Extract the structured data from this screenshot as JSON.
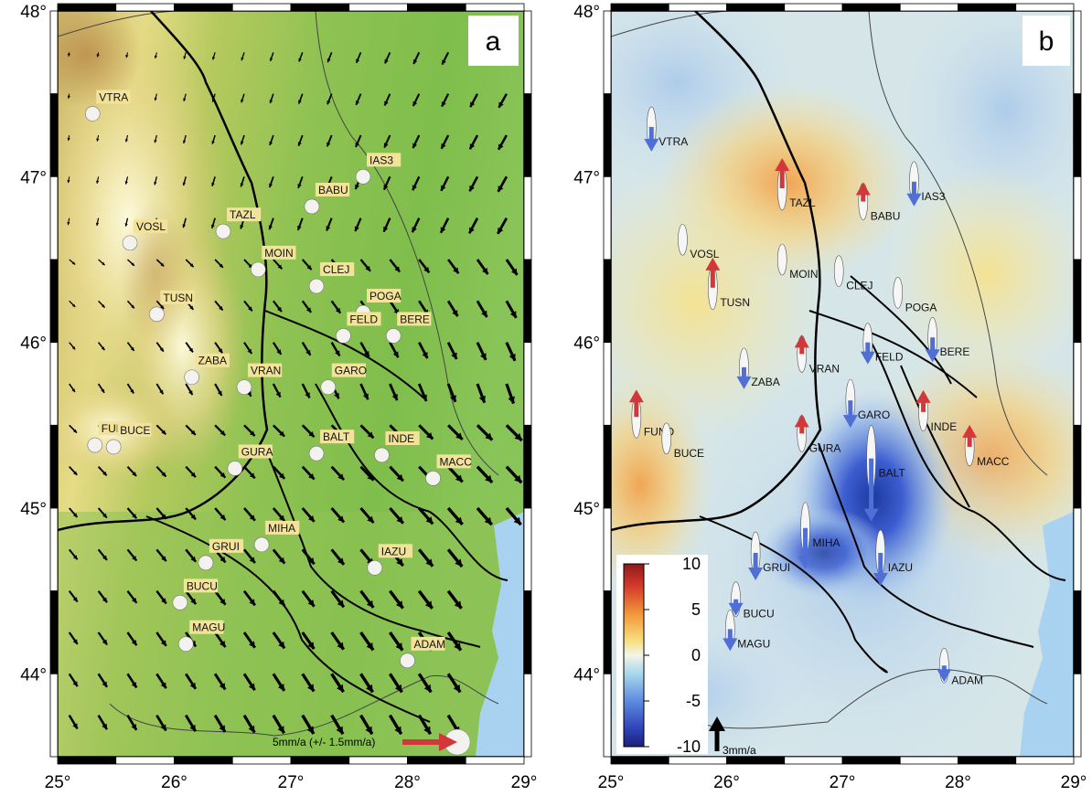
{
  "colors": {
    "label_box": "#f3e39a",
    "label_text": "#444444",
    "vel_red": "#d2383a",
    "vel_blue": "#4f6fd6",
    "sea": "#a8d2ef"
  },
  "axes": {
    "lat_labels": [
      "48°",
      "47°",
      "46°",
      "45°",
      "44°"
    ],
    "lon_labels": [
      "25°",
      "26°",
      "27°",
      "28°",
      "29°"
    ],
    "lon_range": [
      25,
      29
    ],
    "lat_range": [
      43.5,
      48
    ]
  },
  "panel_a": {
    "letter": "a",
    "stations": [
      {
        "name": "VTRA",
        "lon": 25.3,
        "lat": 47.38
      },
      {
        "name": "IAS3",
        "lon": 27.62,
        "lat": 47.0
      },
      {
        "name": "TAZL",
        "lon": 26.42,
        "lat": 46.67
      },
      {
        "name": "BABU",
        "lon": 27.18,
        "lat": 46.82
      },
      {
        "name": "VOSL",
        "lon": 25.62,
        "lat": 46.6
      },
      {
        "name": "MOIN",
        "lon": 26.72,
        "lat": 46.44
      },
      {
        "name": "CLEJ",
        "lon": 27.22,
        "lat": 46.34
      },
      {
        "name": "POGA",
        "lon": 27.62,
        "lat": 46.18
      },
      {
        "name": "TUSN",
        "lon": 25.85,
        "lat": 46.17
      },
      {
        "name": "FELD",
        "lon": 27.45,
        "lat": 46.04
      },
      {
        "name": "BERE",
        "lon": 27.88,
        "lat": 46.04
      },
      {
        "name": "ZABA",
        "lon": 26.15,
        "lat": 45.79
      },
      {
        "name": "VRAN",
        "lon": 26.6,
        "lat": 45.73
      },
      {
        "name": "GARO",
        "lon": 27.32,
        "lat": 45.73
      },
      {
        "name": "INDE",
        "lon": 27.78,
        "lat": 45.32
      },
      {
        "name": "FUND",
        "lon": 25.32,
        "lat": 45.38
      },
      {
        "name": "BUCE",
        "lon": 25.48,
        "lat": 45.37
      },
      {
        "name": "BALT",
        "lon": 27.22,
        "lat": 45.33
      },
      {
        "name": "GURA",
        "lon": 26.52,
        "lat": 45.24
      },
      {
        "name": "MACC",
        "lon": 28.22,
        "lat": 45.18
      },
      {
        "name": "GRUI",
        "lon": 26.27,
        "lat": 44.67
      },
      {
        "name": "MIHA",
        "lon": 26.75,
        "lat": 44.78
      },
      {
        "name": "IAZU",
        "lon": 27.72,
        "lat": 44.64
      },
      {
        "name": "BUCU",
        "lon": 26.05,
        "lat": 44.43
      },
      {
        "name": "MAGU",
        "lon": 26.1,
        "lat": 44.18
      },
      {
        "name": "ADAM",
        "lon": 28.0,
        "lat": 44.08
      }
    ],
    "scale_label": "5mm/a (+/- 1.5mm/a)"
  },
  "panel_b": {
    "letter": "b",
    "stations": [
      {
        "name": "VTRA",
        "lon": 25.35,
        "lat": 47.3,
        "vu": -2.5
      },
      {
        "name": "IAS3",
        "lon": 27.62,
        "lat": 46.97,
        "vu": -2.5
      },
      {
        "name": "TAZL",
        "lon": 26.48,
        "lat": 46.93,
        "vu": 3.5
      },
      {
        "name": "BABU",
        "lon": 27.18,
        "lat": 46.85,
        "vu": 1.5
      },
      {
        "name": "VOSL",
        "lon": 25.62,
        "lat": 46.62,
        "vu": 0.0
      },
      {
        "name": "MOIN",
        "lon": 26.48,
        "lat": 46.5,
        "vu": 0.0
      },
      {
        "name": "CLEJ",
        "lon": 26.97,
        "lat": 46.43,
        "vu": 0.0
      },
      {
        "name": "POGA",
        "lon": 27.48,
        "lat": 46.3,
        "vu": 0.0
      },
      {
        "name": "TUSN",
        "lon": 25.88,
        "lat": 46.33,
        "vu": 3.5
      },
      {
        "name": "FELD",
        "lon": 27.22,
        "lat": 46.0,
        "vu": -2.0
      },
      {
        "name": "BERE",
        "lon": 27.78,
        "lat": 46.03,
        "vu": -2.5
      },
      {
        "name": "ZABA",
        "lon": 26.15,
        "lat": 45.85,
        "vu": -2.0
      },
      {
        "name": "VRAN",
        "lon": 26.65,
        "lat": 45.93,
        "vu": 1.5
      },
      {
        "name": "GARO",
        "lon": 27.07,
        "lat": 45.65,
        "vu": -3.0
      },
      {
        "name": "INDE",
        "lon": 27.7,
        "lat": 45.58,
        "vu": 2.0
      },
      {
        "name": "FUND",
        "lon": 25.22,
        "lat": 45.55,
        "vu": 3.0
      },
      {
        "name": "BUCE",
        "lon": 25.48,
        "lat": 45.42,
        "vu": 0.0
      },
      {
        "name": "BALT",
        "lon": 27.25,
        "lat": 45.3,
        "vu": -9.5
      },
      {
        "name": "GURA",
        "lon": 26.65,
        "lat": 45.45,
        "vu": 1.5
      },
      {
        "name": "MACC",
        "lon": 28.1,
        "lat": 45.37,
        "vu": 2.0
      },
      {
        "name": "GRUI",
        "lon": 26.25,
        "lat": 44.73,
        "vu": -3.0
      },
      {
        "name": "MIHA",
        "lon": 26.68,
        "lat": 44.88,
        "vu": -5.5
      },
      {
        "name": "IAZU",
        "lon": 27.33,
        "lat": 44.73,
        "vu": -4.0
      },
      {
        "name": "BUCU",
        "lon": 26.08,
        "lat": 44.45,
        "vu": -1.0
      },
      {
        "name": "MAGU",
        "lon": 26.03,
        "lat": 44.27,
        "vu": -2.0
      },
      {
        "name": "ADAM",
        "lon": 27.88,
        "lat": 44.05,
        "vu": -1.0
      }
    ],
    "colorbar": {
      "ticks": [
        "10",
        "5",
        "0",
        "-5",
        "-10"
      ],
      "range": [
        -10,
        10
      ]
    },
    "scale_label": "3mm/a"
  }
}
